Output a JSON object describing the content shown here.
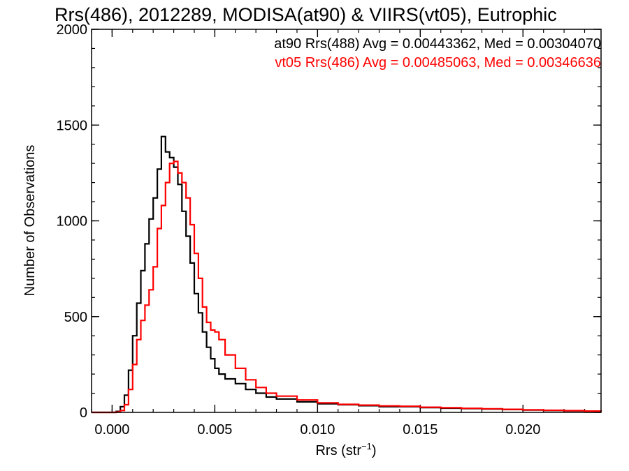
{
  "chart_data": {
    "type": "line",
    "title": "Rrs(486), 2012289, MODISA(at90) & VIIRS(vt05), Eutrophic",
    "xlabel_main": "Rrs (str",
    "xlabel_sup": "−1",
    "xlabel_close": ")",
    "ylabel": "Number of Observations",
    "xlim": [
      -0.001,
      0.0238
    ],
    "ylim": [
      0,
      2000
    ],
    "xticks": [
      {
        "value": 0.0,
        "label": "0.000"
      },
      {
        "value": 0.005,
        "label": "0.005"
      },
      {
        "value": 0.01,
        "label": "0.010"
      },
      {
        "value": 0.015,
        "label": "0.015"
      },
      {
        "value": 0.02,
        "label": "0.020"
      }
    ],
    "yticks": [
      {
        "value": 0,
        "label": "0"
      },
      {
        "value": 500,
        "label": "500"
      },
      {
        "value": 1000,
        "label": "1000"
      },
      {
        "value": 1500,
        "label": "1500"
      },
      {
        "value": 2000,
        "label": "2000"
      }
    ],
    "x_minor_step": 0.001,
    "y_minor_step": 100,
    "legend_position": "top-right",
    "series": [
      {
        "name": "at90 Rrs(488) Avg = 0.00443362, Med = 0.00304070",
        "color": "#000000",
        "step": true,
        "points": [
          [
            -0.001,
            0
          ],
          [
            0.0,
            0
          ],
          [
            0.0002,
            5
          ],
          [
            0.0004,
            30
          ],
          [
            0.0006,
            90
          ],
          [
            0.0008,
            220
          ],
          [
            0.001,
            400
          ],
          [
            0.0012,
            570
          ],
          [
            0.0014,
            740
          ],
          [
            0.0016,
            880
          ],
          [
            0.0018,
            1010
          ],
          [
            0.002,
            1120
          ],
          [
            0.0022,
            1270
          ],
          [
            0.0024,
            1440
          ],
          [
            0.0026,
            1360
          ],
          [
            0.0028,
            1330
          ],
          [
            0.003,
            1280
          ],
          [
            0.0032,
            1190
          ],
          [
            0.0034,
            1050
          ],
          [
            0.0036,
            920
          ],
          [
            0.0038,
            780
          ],
          [
            0.004,
            620
          ],
          [
            0.0042,
            520
          ],
          [
            0.0044,
            420
          ],
          [
            0.0046,
            340
          ],
          [
            0.0048,
            280
          ],
          [
            0.005,
            230
          ],
          [
            0.0052,
            200
          ],
          [
            0.0055,
            175
          ],
          [
            0.006,
            150
          ],
          [
            0.0065,
            120
          ],
          [
            0.007,
            100
          ],
          [
            0.0075,
            80
          ],
          [
            0.008,
            70
          ],
          [
            0.009,
            55
          ],
          [
            0.01,
            45
          ],
          [
            0.011,
            40
          ],
          [
            0.012,
            35
          ],
          [
            0.013,
            30
          ],
          [
            0.014,
            30
          ],
          [
            0.015,
            25
          ],
          [
            0.016,
            22
          ],
          [
            0.017,
            20
          ],
          [
            0.018,
            18
          ],
          [
            0.019,
            15
          ],
          [
            0.02,
            12
          ],
          [
            0.021,
            10
          ],
          [
            0.022,
            8
          ],
          [
            0.023,
            6
          ],
          [
            0.0238,
            5
          ]
        ]
      },
      {
        "name": "vt05 Rrs(486) Avg = 0.00485063, Med = 0.00346636",
        "color": "#ff0000",
        "step": true,
        "points": [
          [
            -0.001,
            0
          ],
          [
            0.0,
            0
          ],
          [
            0.0002,
            2
          ],
          [
            0.0004,
            10
          ],
          [
            0.0006,
            40
          ],
          [
            0.0008,
            120
          ],
          [
            0.001,
            250
          ],
          [
            0.0012,
            380
          ],
          [
            0.0014,
            480
          ],
          [
            0.0016,
            560
          ],
          [
            0.0018,
            640
          ],
          [
            0.002,
            760
          ],
          [
            0.0022,
            960
          ],
          [
            0.0024,
            1080
          ],
          [
            0.0026,
            1200
          ],
          [
            0.0028,
            1300
          ],
          [
            0.003,
            1310
          ],
          [
            0.0032,
            1250
          ],
          [
            0.0034,
            1200
          ],
          [
            0.0036,
            1120
          ],
          [
            0.0038,
            980
          ],
          [
            0.004,
            830
          ],
          [
            0.0042,
            700
          ],
          [
            0.0044,
            550
          ],
          [
            0.0046,
            470
          ],
          [
            0.0048,
            430
          ],
          [
            0.005,
            420
          ],
          [
            0.0052,
            380
          ],
          [
            0.0055,
            300
          ],
          [
            0.006,
            230
          ],
          [
            0.0065,
            170
          ],
          [
            0.007,
            130
          ],
          [
            0.0075,
            100
          ],
          [
            0.008,
            85
          ],
          [
            0.009,
            65
          ],
          [
            0.01,
            50
          ],
          [
            0.011,
            42
          ],
          [
            0.012,
            38
          ],
          [
            0.013,
            34
          ],
          [
            0.014,
            32
          ],
          [
            0.015,
            27
          ],
          [
            0.016,
            24
          ],
          [
            0.017,
            21
          ],
          [
            0.018,
            19
          ],
          [
            0.019,
            16
          ],
          [
            0.02,
            13
          ],
          [
            0.021,
            11
          ],
          [
            0.022,
            9
          ],
          [
            0.023,
            7
          ],
          [
            0.0238,
            6
          ]
        ]
      }
    ]
  }
}
